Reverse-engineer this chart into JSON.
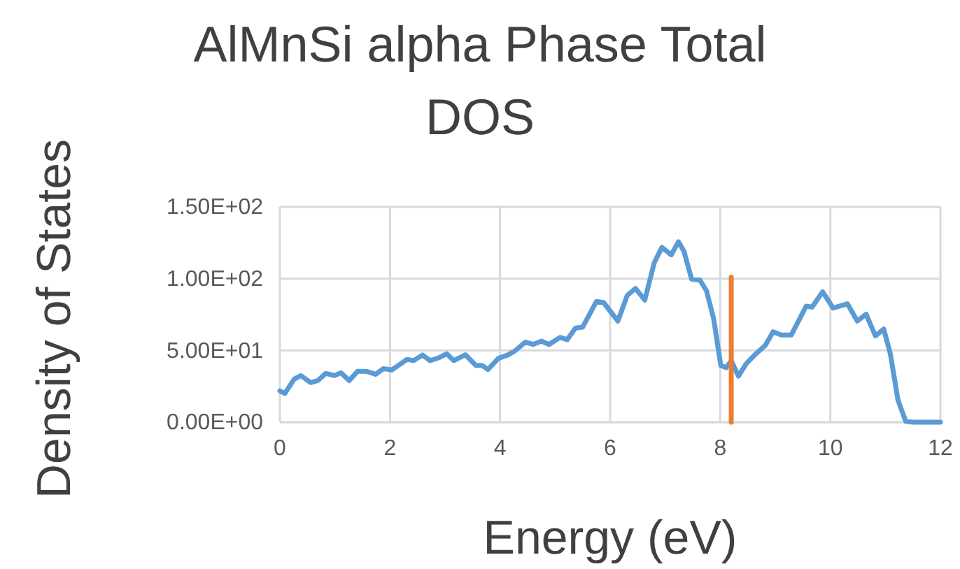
{
  "chart_data": {
    "type": "line",
    "title": "AlMnSi alpha Phase Total DOS",
    "xlabel": "Energy (eV)",
    "ylabel": "Density of States",
    "xlim": [
      0,
      12
    ],
    "xticks": [
      0,
      2,
      4,
      6,
      8,
      10,
      12
    ],
    "ylim": [
      0,
      150
    ],
    "yticks": [
      {
        "value": 0,
        "label": "0.00E+00"
      },
      {
        "value": 50,
        "label": "5.00E+01"
      },
      {
        "value": 100,
        "label": "1.00E+02"
      },
      {
        "value": 150,
        "label": "1.50E+02"
      }
    ],
    "grid": true,
    "series": [
      {
        "color": "#5b9bd5",
        "x": [
          0,
          0.09,
          0.26,
          0.38,
          0.56,
          0.69,
          0.83,
          0.99,
          1.11,
          1.26,
          1.41,
          1.58,
          1.74,
          1.88,
          2.03,
          2.31,
          2.43,
          2.59,
          2.73,
          2.88,
          3.03,
          3.16,
          3.37,
          3.56,
          3.67,
          3.78,
          3.97,
          4.14,
          4.26,
          4.46,
          4.6,
          4.75,
          4.89,
          5.09,
          5.22,
          5.37,
          5.5,
          5.75,
          5.88,
          6.14,
          6.31,
          6.46,
          6.63,
          6.8,
          6.94,
          7.11,
          7.24,
          7.34,
          7.48,
          7.63,
          7.75,
          7.88,
          8.01,
          8.11,
          8.2,
          8.33,
          8.48,
          8.65,
          8.82,
          8.96,
          9.11,
          9.29,
          9.56,
          9.67,
          9.86,
          10.05,
          10.31,
          10.49,
          10.65,
          10.82,
          10.97,
          11.09,
          11.23,
          11.37,
          11.5,
          12
        ],
        "values": [
          21.8,
          20,
          30,
          32.5,
          27.6,
          29,
          34,
          32.5,
          34.4,
          29,
          35.4,
          35.4,
          33.4,
          37.3,
          36.4,
          43.8,
          42.9,
          46.8,
          42.9,
          44.8,
          47.7,
          42.9,
          47,
          39.6,
          39.6,
          36.7,
          44.5,
          46.8,
          49.4,
          55.8,
          54.2,
          56.5,
          54.2,
          59.1,
          57.5,
          65.6,
          66.2,
          84.1,
          83.4,
          70.5,
          88.3,
          93.2,
          85.1,
          111,
          121.8,
          116.6,
          125.7,
          119.2,
          99.7,
          99,
          91.6,
          72.1,
          39.6,
          38,
          42.9,
          32.1,
          41.2,
          47.7,
          53.6,
          63,
          60.7,
          60.7,
          80.8,
          80.2,
          90.9,
          79.6,
          82.5,
          70.5,
          75.3,
          60.1,
          64.9,
          47.7,
          15.3,
          0.6,
          0,
          0
        ]
      },
      {
        "type": "line",
        "color": "#ed7d31",
        "x": [
          8.2,
          8.2
        ],
        "values": [
          0,
          101
        ]
      }
    ]
  }
}
